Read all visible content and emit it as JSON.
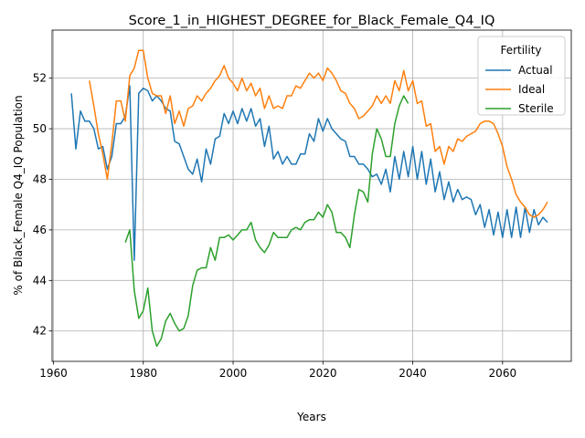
{
  "chart_data": {
    "type": "line",
    "title": "Score_1_in_HIGHEST_DEGREE_for_Black_Female_Q4_IQ",
    "xlabel": "Years",
    "ylabel": "% of Black_Female Q4_IQ Population",
    "xlim": [
      1959.7,
      2075.3
    ],
    "ylim": [
      40.8,
      53.9
    ],
    "xticks": [
      1960,
      1980,
      2000,
      2020,
      2040,
      2060
    ],
    "yticks": [
      42,
      44,
      46,
      48,
      50,
      52
    ],
    "grid": true,
    "legend": {
      "title": "Fertility",
      "position": "top-right"
    },
    "series": [
      {
        "name": "Actual",
        "color": "#1f77b4",
        "x": [
          1964,
          1965,
          1966,
          1967,
          1968,
          1969,
          1970,
          1971,
          1972,
          1973,
          1974,
          1975,
          1976,
          1977,
          1978,
          1979,
          1980,
          1981,
          1982,
          1983,
          1984,
          1985,
          1986,
          1987,
          1988,
          1989,
          1990,
          1991,
          1992,
          1993,
          1994,
          1995,
          1996,
          1997,
          1998,
          1999,
          2000,
          2001,
          2002,
          2003,
          2004,
          2005,
          2006,
          2007,
          2008,
          2009,
          2010,
          2011,
          2012,
          2013,
          2014,
          2015,
          2016,
          2017,
          2018,
          2019,
          2020,
          2021,
          2022,
          2023,
          2024,
          2025,
          2026,
          2027,
          2028,
          2029,
          2030,
          2031,
          2032,
          2033,
          2034,
          2035,
          2036,
          2037,
          2038,
          2039,
          2040,
          2041,
          2042,
          2043,
          2044,
          2045,
          2046,
          2047,
          2048,
          2049,
          2050,
          2051,
          2052,
          2053,
          2054,
          2055,
          2056,
          2057,
          2058,
          2059,
          2060,
          2061,
          2062,
          2063,
          2064,
          2065,
          2066,
          2067,
          2068,
          2069,
          2070
        ],
        "y": [
          51.4,
          49.2,
          50.7,
          50.3,
          50.3,
          50.0,
          49.2,
          49.3,
          48.4,
          48.9,
          50.2,
          50.2,
          50.5,
          51.7,
          44.8,
          51.4,
          51.6,
          51.5,
          51.1,
          51.3,
          51.1,
          50.8,
          50.7,
          49.5,
          49.4,
          48.9,
          48.4,
          48.2,
          48.8,
          47.9,
          49.2,
          48.6,
          49.6,
          49.7,
          50.6,
          50.2,
          50.7,
          50.2,
          50.8,
          50.3,
          50.8,
          50.1,
          50.4,
          49.3,
          50.1,
          48.8,
          49.1,
          48.6,
          48.9,
          48.6,
          48.6,
          49.0,
          49.0,
          49.8,
          49.5,
          50.4,
          49.9,
          50.4,
          50.0,
          49.8,
          49.6,
          49.5,
          48.9,
          48.9,
          48.6,
          48.6,
          48.4,
          48.1,
          48.2,
          47.8,
          48.4,
          47.5,
          48.9,
          48.0,
          49.1,
          48.1,
          49.3,
          48.0,
          49.1,
          47.8,
          48.8,
          47.5,
          48.3,
          47.2,
          47.9,
          47.1,
          47.6,
          47.2,
          47.3,
          47.2,
          46.6,
          47.0,
          46.1,
          46.8,
          45.8,
          46.7,
          45.7,
          46.8,
          45.7,
          46.9,
          45.7,
          46.9,
          45.9,
          46.8,
          46.2,
          46.5,
          46.3
        ]
      },
      {
        "name": "Ideal",
        "color": "#ff7f0e",
        "x": [
          1968,
          1969,
          1970,
          1971,
          1972,
          1973,
          1974,
          1975,
          1976,
          1977,
          1978,
          1979,
          1980,
          1981,
          1982,
          1983,
          1984,
          1985,
          1986,
          1987,
          1988,
          1989,
          1990,
          1991,
          1992,
          1993,
          1994,
          1995,
          1996,
          1997,
          1998,
          1999,
          2000,
          2001,
          2002,
          2003,
          2004,
          2005,
          2006,
          2007,
          2008,
          2009,
          2010,
          2011,
          2012,
          2013,
          2014,
          2015,
          2016,
          2017,
          2018,
          2019,
          2020,
          2021,
          2022,
          2023,
          2024,
          2025,
          2026,
          2027,
          2028,
          2029,
          2030,
          2031,
          2032,
          2033,
          2034,
          2035,
          2036,
          2037,
          2038,
          2039,
          2040,
          2041,
          2042,
          2043,
          2044,
          2045,
          2046,
          2047,
          2048,
          2049,
          2050,
          2051,
          2052,
          2053,
          2054,
          2055,
          2056,
          2057,
          2058,
          2059,
          2060,
          2061,
          2062,
          2063,
          2064,
          2065,
          2066,
          2067,
          2068,
          2069,
          2070
        ],
        "y": [
          51.9,
          50.9,
          49.8,
          49.0,
          48.0,
          49.4,
          51.1,
          51.1,
          50.3,
          52.1,
          52.4,
          53.1,
          53.1,
          52.0,
          51.4,
          51.3,
          51.3,
          50.6,
          51.3,
          50.2,
          50.7,
          50.1,
          50.8,
          50.9,
          51.3,
          51.1,
          51.4,
          51.6,
          51.9,
          52.1,
          52.5,
          52.0,
          51.8,
          51.5,
          52.0,
          51.5,
          51.8,
          51.3,
          51.6,
          50.8,
          51.3,
          50.8,
          50.9,
          50.8,
          51.3,
          51.3,
          51.7,
          51.6,
          51.9,
          52.2,
          52.0,
          52.2,
          51.9,
          52.4,
          52.2,
          51.9,
          51.5,
          51.4,
          51.0,
          50.8,
          50.4,
          50.5,
          50.7,
          50.9,
          51.3,
          51.0,
          51.3,
          51.0,
          51.9,
          51.5,
          52.3,
          51.5,
          51.9,
          51.0,
          51.1,
          50.1,
          50.2,
          49.1,
          49.3,
          48.6,
          49.3,
          49.1,
          49.6,
          49.5,
          49.7,
          49.8,
          49.9,
          50.2,
          50.3,
          50.3,
          50.2,
          49.8,
          49.3,
          48.5,
          48.0,
          47.4,
          47.1,
          46.9,
          46.6,
          46.5,
          46.6,
          46.8,
          47.1
        ]
      },
      {
        "name": "Sterile",
        "color": "#2ca02c",
        "x": [
          1976,
          1977,
          1978,
          1979,
          1980,
          1981,
          1982,
          1983,
          1984,
          1985,
          1986,
          1987,
          1988,
          1989,
          1990,
          1991,
          1992,
          1993,
          1994,
          1995,
          1996,
          1997,
          1998,
          1999,
          2000,
          2001,
          2002,
          2003,
          2004,
          2005,
          2006,
          2007,
          2008,
          2009,
          2010,
          2011,
          2012,
          2013,
          2014,
          2015,
          2016,
          2017,
          2018,
          2019,
          2020,
          2021,
          2022,
          2023,
          2024,
          2025,
          2026,
          2027,
          2028,
          2029,
          2030,
          2031,
          2032,
          2033,
          2034,
          2035,
          2036,
          2037,
          2038,
          2039
        ],
        "y": [
          45.5,
          46.0,
          43.6,
          42.5,
          42.8,
          43.7,
          42.0,
          41.4,
          41.7,
          42.4,
          42.7,
          42.3,
          42.0,
          42.1,
          42.6,
          43.8,
          44.4,
          44.5,
          44.5,
          45.3,
          44.8,
          45.7,
          45.7,
          45.8,
          45.6,
          45.8,
          46.0,
          46.0,
          46.3,
          45.6,
          45.3,
          45.1,
          45.4,
          45.9,
          45.7,
          45.7,
          45.7,
          46.0,
          46.1,
          46.0,
          46.3,
          46.4,
          46.4,
          46.7,
          46.5,
          47.0,
          46.7,
          45.9,
          45.9,
          45.7,
          45.3,
          46.6,
          47.6,
          47.5,
          47.1,
          49.0,
          50.0,
          49.6,
          48.9,
          48.9,
          50.2,
          50.9,
          51.3,
          51.0
        ]
      }
    ]
  }
}
